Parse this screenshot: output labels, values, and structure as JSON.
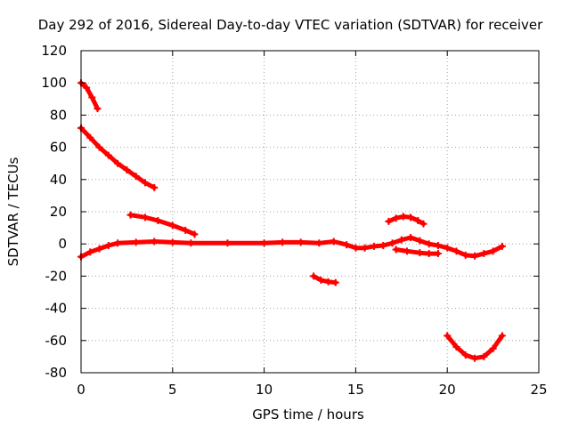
{
  "chart_data": {
    "type": "scatter",
    "title": "Day 292 of 2016, Sidereal Day-to-day VTEC variation (SDTVAR) for receiver",
    "xlabel": "GPS time / hours",
    "ylabel": "SDTVAR / TECUs",
    "xlim": [
      0,
      25
    ],
    "ylim": [
      -80,
      120
    ],
    "xticks": [
      0,
      5,
      10,
      15,
      20,
      25
    ],
    "yticks": [
      -80,
      -60,
      -40,
      -20,
      0,
      20,
      40,
      60,
      80,
      100,
      120
    ],
    "grid": true,
    "legend": "none",
    "color": "#ff0000",
    "series": [
      {
        "points": [
          [
            0.0,
            100
          ],
          [
            0.3,
            97
          ],
          [
            0.6,
            91
          ],
          [
            0.9,
            84
          ]
        ]
      },
      {
        "points": [
          [
            0.0,
            72
          ],
          [
            0.5,
            66
          ],
          [
            1.0,
            60
          ],
          [
            1.5,
            55
          ],
          [
            2.0,
            50
          ],
          [
            2.5,
            46
          ],
          [
            3.0,
            42
          ],
          [
            3.5,
            38
          ],
          [
            4.0,
            35
          ]
        ]
      },
      {
        "points": [
          [
            2.7,
            18
          ],
          [
            3.5,
            16.5
          ],
          [
            4.2,
            14.5
          ],
          [
            5.0,
            11.5
          ],
          [
            5.7,
            8.5
          ],
          [
            6.2,
            6
          ]
        ]
      },
      {
        "points": [
          [
            0.0,
            -8
          ],
          [
            0.5,
            -5
          ],
          [
            1.0,
            -3
          ],
          [
            1.5,
            -1
          ],
          [
            2.0,
            0.5
          ],
          [
            3.0,
            1
          ],
          [
            4.0,
            1.5
          ],
          [
            5.0,
            1
          ],
          [
            6.0,
            0.5
          ],
          [
            8.0,
            0.5
          ],
          [
            10.0,
            0.5
          ],
          [
            11.0,
            1
          ],
          [
            12.0,
            1
          ],
          [
            13.0,
            0.5
          ],
          [
            13.8,
            1.5
          ],
          [
            14.5,
            -0.5
          ],
          [
            15.0,
            -2.5
          ],
          [
            15.5,
            -2.5
          ],
          [
            16.0,
            -1.5
          ],
          [
            16.5,
            -1
          ],
          [
            17.0,
            0.5
          ],
          [
            17.5,
            2.5
          ],
          [
            18.0,
            4
          ],
          [
            18.5,
            2
          ],
          [
            19.0,
            0
          ],
          [
            19.5,
            -1
          ],
          [
            20.0,
            -2.5
          ],
          [
            20.5,
            -4.5
          ],
          [
            21.0,
            -7
          ],
          [
            21.5,
            -7.5
          ],
          [
            22.0,
            -6
          ],
          [
            22.5,
            -4.5
          ],
          [
            23.0,
            -1.5
          ]
        ]
      },
      {
        "points": [
          [
            17.2,
            -3.5
          ],
          [
            17.8,
            -4.5
          ],
          [
            18.5,
            -5.5
          ],
          [
            19.0,
            -6
          ],
          [
            19.5,
            -6
          ]
        ]
      },
      {
        "points": [
          [
            16.8,
            14
          ],
          [
            17.2,
            16
          ],
          [
            17.6,
            17
          ],
          [
            18.0,
            16.5
          ],
          [
            18.4,
            14.5
          ],
          [
            18.7,
            12.5
          ]
        ]
      },
      {
        "points": [
          [
            12.7,
            -20
          ],
          [
            13.1,
            -22.5
          ],
          [
            13.5,
            -23.5
          ],
          [
            13.9,
            -24
          ]
        ]
      },
      {
        "points": [
          [
            20.0,
            -57
          ],
          [
            20.5,
            -64
          ],
          [
            21.0,
            -69
          ],
          [
            21.5,
            -71
          ],
          [
            22.0,
            -70
          ],
          [
            22.5,
            -65
          ],
          [
            23.0,
            -57
          ]
        ]
      }
    ]
  }
}
